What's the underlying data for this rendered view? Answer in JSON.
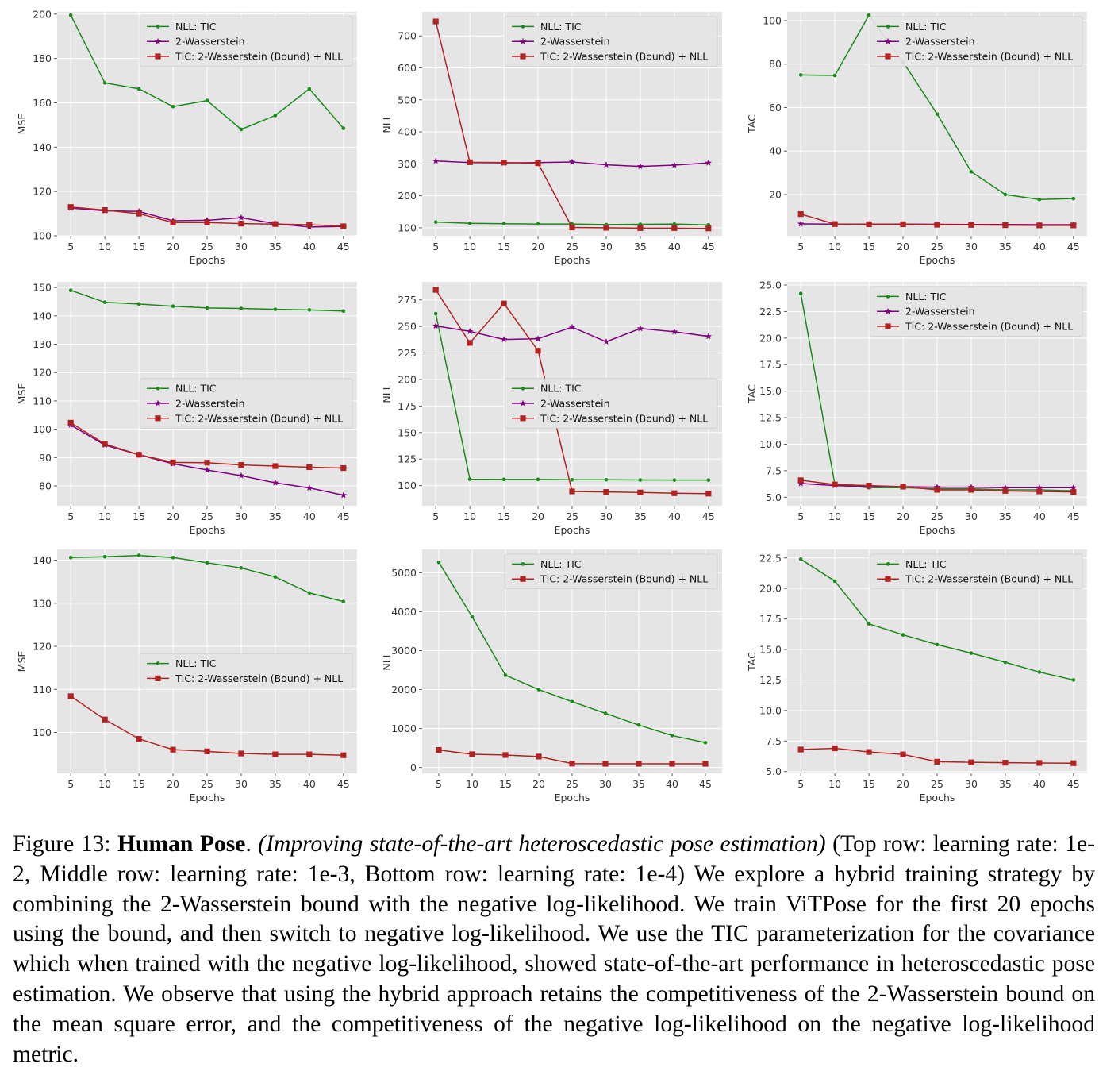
{
  "colors": {
    "nll_tic": "#1a8a1a",
    "wasserstein": "#800080",
    "hybrid": "#b22222",
    "plot_bg": "#e5e5e5",
    "grid": "#ffffff"
  },
  "caption": {
    "figure_label": "Figure 13: ",
    "title": "Human Pose",
    "title_dot": ". ",
    "subtitle": "(Improving state-of-the-art heteroscedastic pose estimation)",
    "body": " (Top row: learning rate: 1e-2, Middle row: learning rate: 1e-3, Bottom row: learning rate: 1e-4) We explore a hybrid training strategy by combining the 2-Wasserstein bound with the negative log-likelihood. We train ViTPose for the first 20 epochs using the bound, and then switch to negative log-likelihood. We use the TIC parameterization for the covariance which when trained with the negative log-likelihood, showed state-of-the-art performance in heteroscedastic pose estimation. We observe that using the hybrid approach retains the competitiveness of the 2-Wasserstein bound on the mean square error, and the competitiveness of the negative log-likelihood on the negative log-likelihood metric."
  },
  "chart_data": [
    {
      "type": "line",
      "xlabel": "Epochs",
      "ylabel": "MSE",
      "x": [
        5,
        10,
        15,
        20,
        25,
        30,
        35,
        40,
        45
      ],
      "xlim": [
        3,
        47
      ],
      "ylim": [
        100,
        201
      ],
      "yticks": [
        100,
        120,
        140,
        160,
        180,
        200
      ],
      "ytick_labels": [
        "100",
        "120",
        "140",
        "160",
        "180",
        "200"
      ],
      "legend": "top-right",
      "grid": true,
      "series": [
        {
          "name": "NLL: TIC",
          "marker": "dot",
          "color": "#1a8a1a",
          "values": [
            199.5,
            169,
            166.3,
            158.3,
            161,
            148,
            154.3,
            166.3,
            148.5
          ]
        },
        {
          "name": "2-Wasserstein",
          "marker": "star",
          "color": "#800080",
          "values": [
            112.5,
            111.3,
            111,
            106.8,
            107,
            108.2,
            105.5,
            104,
            104.2
          ]
        },
        {
          "name": "TIC: 2-Wasserstein (Bound) + NLL",
          "marker": "square",
          "color": "#b22222",
          "values": [
            113,
            111.6,
            110,
            106,
            106,
            105.5,
            105.3,
            105,
            104.3
          ]
        }
      ]
    },
    {
      "type": "line",
      "xlabel": "Epochs",
      "ylabel": "NLL",
      "x": [
        5,
        10,
        15,
        20,
        25,
        30,
        35,
        40,
        45
      ],
      "xlim": [
        3,
        47
      ],
      "ylim": [
        75,
        775
      ],
      "yticks": [
        100,
        200,
        300,
        400,
        500,
        600,
        700
      ],
      "ytick_labels": [
        "100",
        "200",
        "300",
        "400",
        "500",
        "600",
        "700"
      ],
      "legend": "top-right",
      "grid": true,
      "series": [
        {
          "name": "NLL: TIC",
          "marker": "dot",
          "color": "#1a8a1a",
          "values": [
            118,
            114,
            113,
            112,
            112,
            110,
            111,
            112,
            109
          ]
        },
        {
          "name": "2-Wasserstein",
          "marker": "star",
          "color": "#800080",
          "values": [
            309,
            304,
            303,
            304,
            306,
            297,
            292,
            296,
            303
          ]
        },
        {
          "name": "TIC: 2-Wasserstein (Bound) + NLL",
          "marker": "square",
          "color": "#b22222",
          "values": [
            745,
            305,
            304,
            302,
            101,
            100,
            99,
            99,
            98
          ]
        }
      ]
    },
    {
      "type": "line",
      "xlabel": "Epochs",
      "ylabel": "TAC",
      "x": [
        5,
        10,
        15,
        20,
        25,
        30,
        35,
        40,
        45
      ],
      "xlim": [
        3,
        47
      ],
      "ylim": [
        1,
        104
      ],
      "yticks": [
        20,
        40,
        60,
        80,
        100
      ],
      "ytick_labels": [
        "20",
        "40",
        "60",
        "80",
        "100"
      ],
      "legend": "top-right",
      "grid": true,
      "series": [
        {
          "name": "NLL: TIC",
          "marker": "dot",
          "color": "#1a8a1a",
          "values": [
            75,
            74.8,
            102.5,
            81,
            57,
            30.5,
            20,
            17.7,
            18.1
          ]
        },
        {
          "name": "2-Wasserstein",
          "marker": "star",
          "color": "#800080",
          "values": [
            6.5,
            6.4,
            6.4,
            6.4,
            6.3,
            6.2,
            6.2,
            6.1,
            6.1
          ]
        },
        {
          "name": "TIC: 2-Wasserstein (Bound) + NLL",
          "marker": "square",
          "color": "#b22222",
          "values": [
            11,
            6.4,
            6.3,
            6.3,
            6.1,
            6,
            5.9,
            5.8,
            5.8
          ]
        }
      ]
    },
    {
      "type": "line",
      "xlabel": "Epochs",
      "ylabel": "MSE",
      "x": [
        5,
        10,
        15,
        20,
        25,
        30,
        35,
        40,
        45
      ],
      "xlim": [
        3,
        47
      ],
      "ylim": [
        73,
        152
      ],
      "yticks": [
        80,
        90,
        100,
        110,
        120,
        130,
        140,
        150
      ],
      "ytick_labels": [
        "80",
        "90",
        "100",
        "110",
        "120",
        "130",
        "140",
        "150"
      ],
      "legend": "center-right",
      "grid": true,
      "series": [
        {
          "name": "NLL: TIC",
          "marker": "dot",
          "color": "#1a8a1a",
          "values": [
            149,
            144.8,
            144.2,
            143.4,
            142.8,
            142.6,
            142.3,
            142.1,
            141.7
          ]
        },
        {
          "name": "2-Wasserstein",
          "marker": "star",
          "color": "#800080",
          "values": [
            101.5,
            94.4,
            91,
            87.8,
            85.6,
            83.6,
            81.1,
            79.3,
            76.7
          ]
        },
        {
          "name": "TIC: 2-Wasserstein (Bound) + NLL",
          "marker": "square",
          "color": "#b22222",
          "values": [
            102.3,
            94.8,
            91,
            88.3,
            88.2,
            87.4,
            87,
            86.6,
            86.3
          ]
        }
      ]
    },
    {
      "type": "line",
      "xlabel": "Epochs",
      "ylabel": "NLL",
      "x": [
        5,
        10,
        15,
        20,
        25,
        30,
        35,
        40,
        45
      ],
      "xlim": [
        3,
        47
      ],
      "ylim": [
        81,
        292
      ],
      "yticks": [
        100,
        125,
        150,
        175,
        200,
        225,
        250,
        275
      ],
      "ytick_labels": [
        "100",
        "125",
        "150",
        "175",
        "200",
        "225",
        "250",
        "275"
      ],
      "legend": "center-right",
      "grid": true,
      "series": [
        {
          "name": "NLL: TIC",
          "marker": "dot",
          "color": "#1a8a1a",
          "values": [
            262,
            106,
            105.8,
            105.8,
            105.5,
            105.5,
            105.3,
            105.2,
            105.2
          ]
        },
        {
          "name": "2-Wasserstein",
          "marker": "star",
          "color": "#800080",
          "values": [
            250.5,
            245.3,
            237.7,
            238.4,
            249.3,
            235.5,
            248,
            245,
            240.6
          ]
        },
        {
          "name": "TIC: 2-Wasserstein (Bound) + NLL",
          "marker": "square",
          "color": "#b22222",
          "values": [
            284.5,
            234.5,
            271.6,
            227.1,
            94.5,
            94,
            93.5,
            92.8,
            92.4
          ]
        }
      ]
    },
    {
      "type": "line",
      "xlabel": "Epochs",
      "ylabel": "TAC",
      "x": [
        5,
        10,
        15,
        20,
        25,
        30,
        35,
        40,
        45
      ],
      "xlim": [
        3,
        47
      ],
      "ylim": [
        4.2,
        25.3
      ],
      "yticks": [
        5,
        7.5,
        10,
        12.5,
        15,
        17.5,
        20,
        22.5,
        25
      ],
      "ytick_labels": [
        "5.0",
        "7.5",
        "10.0",
        "12.5",
        "15.0",
        "17.5",
        "20.0",
        "22.5",
        "25.0"
      ],
      "legend": "top-right",
      "grid": true,
      "series": [
        {
          "name": "NLL: TIC",
          "marker": "dot",
          "color": "#1a8a1a",
          "values": [
            24.2,
            6.2,
            5.9,
            5.9,
            5.8,
            5.8,
            5.7,
            5.7,
            5.6
          ]
        },
        {
          "name": "2-Wasserstein",
          "marker": "star",
          "color": "#800080",
          "values": [
            6.3,
            6.1,
            6,
            6,
            5.95,
            5.95,
            5.9,
            5.9,
            5.9
          ]
        },
        {
          "name": "TIC: 2-Wasserstein (Bound) + NLL",
          "marker": "square",
          "color": "#b22222",
          "values": [
            6.6,
            6.2,
            6.1,
            6,
            5.7,
            5.7,
            5.6,
            5.55,
            5.5
          ]
        }
      ]
    },
    {
      "type": "line",
      "xlabel": "Epochs",
      "ylabel": "MSE",
      "x": [
        5,
        10,
        15,
        20,
        25,
        30,
        35,
        40,
        45
      ],
      "xlim": [
        3,
        47
      ],
      "ylim": [
        90.5,
        142.5
      ],
      "yticks": [
        100,
        110,
        120,
        130,
        140
      ],
      "ytick_labels": [
        "100",
        "110",
        "120",
        "130",
        "140"
      ],
      "legend": "center-right",
      "grid": true,
      "series": [
        {
          "name": "NLL: TIC",
          "marker": "dot",
          "color": "#1a8a1a",
          "values": [
            140.6,
            140.8,
            141.1,
            140.6,
            139.4,
            138.2,
            136.1,
            132.4,
            130.4
          ]
        },
        {
          "name": "TIC: 2-Wasserstein (Bound) + NLL",
          "marker": "square",
          "color": "#b22222",
          "values": [
            108.4,
            103,
            98.5,
            96,
            95.6,
            95.1,
            94.9,
            94.9,
            94.7
          ]
        }
      ]
    },
    {
      "type": "line",
      "xlabel": "Epochs",
      "ylabel": "NLL",
      "x": [
        5,
        10,
        15,
        20,
        25,
        30,
        35,
        40,
        45
      ],
      "xlim": [
        2.5,
        47.5
      ],
      "ylim": [
        -150,
        5600
      ],
      "yticks": [
        0,
        1000,
        2000,
        3000,
        4000,
        5000
      ],
      "ytick_labels": [
        "0",
        "1000",
        "2000",
        "3000",
        "4000",
        "5000"
      ],
      "legend": "top-right",
      "grid": true,
      "series": [
        {
          "name": "NLL: TIC",
          "marker": "dot",
          "color": "#1a8a1a",
          "values": [
            5270,
            3870,
            2370,
            2000,
            1690,
            1390,
            1090,
            820,
            640
          ]
        },
        {
          "name": "TIC: 2-Wasserstein (Bound) + NLL",
          "marker": "square",
          "color": "#b22222",
          "values": [
            450,
            340,
            320,
            280,
            100,
            95,
            95,
            95,
            95
          ]
        }
      ]
    },
    {
      "type": "line",
      "xlabel": "Epochs",
      "ylabel": "TAC",
      "x": [
        5,
        10,
        15,
        20,
        25,
        30,
        35,
        40,
        45
      ],
      "xlim": [
        3,
        47
      ],
      "ylim": [
        4.85,
        23.2
      ],
      "yticks": [
        5,
        7.5,
        10,
        12.5,
        15,
        17.5,
        20,
        22.5
      ],
      "ytick_labels": [
        "5.0",
        "7.5",
        "10.0",
        "12.5",
        "15.0",
        "17.5",
        "20.0",
        "22.5"
      ],
      "legend": "top-right",
      "grid": true,
      "series": [
        {
          "name": "NLL: TIC",
          "marker": "dot",
          "color": "#1a8a1a",
          "values": [
            22.4,
            20.6,
            17.1,
            16.2,
            15.4,
            14.7,
            13.95,
            13.15,
            12.5
          ]
        },
        {
          "name": "TIC: 2-Wasserstein (Bound) + NLL",
          "marker": "square",
          "color": "#b22222",
          "values": [
            6.8,
            6.9,
            6.6,
            6.4,
            5.8,
            5.75,
            5.72,
            5.7,
            5.68
          ]
        }
      ]
    }
  ]
}
